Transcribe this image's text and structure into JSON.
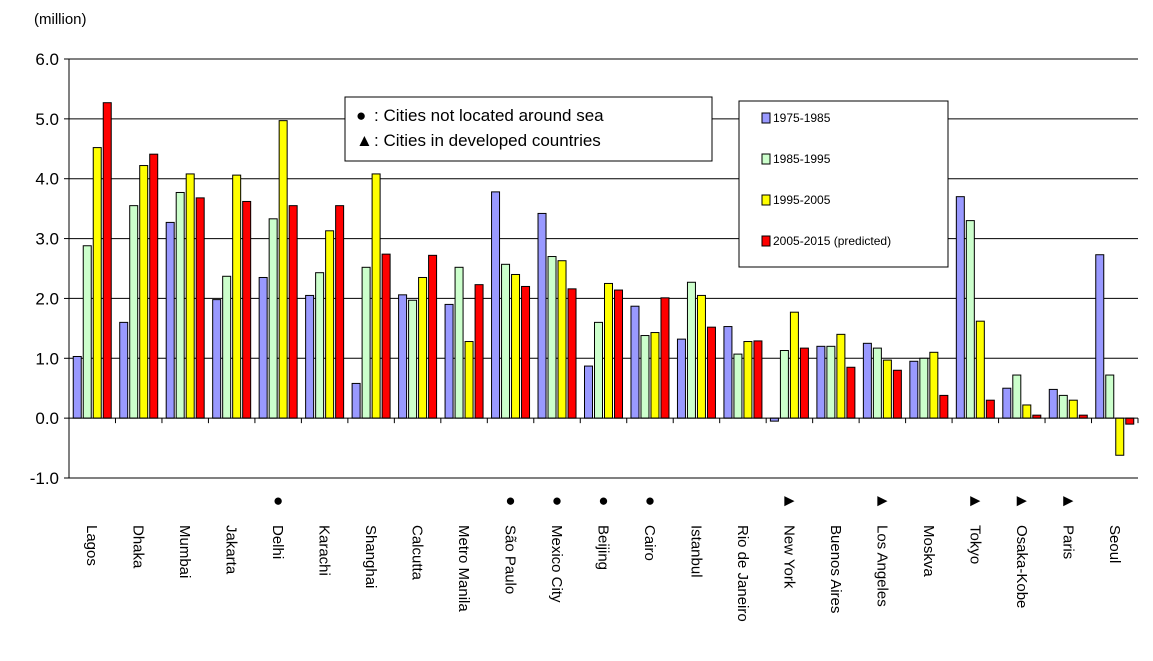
{
  "chart_data": {
    "type": "bar",
    "ylabel": "(million)",
    "ylim": [
      -1.0,
      6.0
    ],
    "yticks": [
      "6.0",
      "5.0",
      "4.0",
      "3.0",
      "2.0",
      "1.0",
      "0.0",
      "-1.0"
    ],
    "ytick_values": [
      6,
      5,
      4,
      3,
      2,
      1,
      0,
      -1
    ],
    "grid": "horizontal",
    "legend_position": "top-right",
    "categories": [
      "Lagos",
      "Dhaka",
      "Mumbai",
      "Jakarta",
      "Delhi",
      "Karachi",
      "Shanghai",
      "Calcutta",
      "Metro Manila",
      "São Paulo",
      "Mexico City",
      "Beijing",
      "Cairo",
      "Istanbul",
      "Rio de Janeiro",
      "New York",
      "Buenos Aires",
      "Los Angeles",
      "Moskva",
      "Tokyo",
      "Osaka-Kobe",
      "Paris",
      "Seoul"
    ],
    "markers": [
      "",
      "",
      "",
      "",
      "●",
      "",
      "",
      "",
      "",
      "●",
      "●",
      "●",
      "●",
      "",
      "",
      "►",
      "",
      "►",
      "",
      "►",
      "►",
      "►",
      ""
    ],
    "series": [
      {
        "name": "1975-1985",
        "color": "#9999ff",
        "values": [
          1.03,
          1.6,
          3.27,
          1.98,
          2.35,
          2.05,
          0.58,
          2.06,
          1.9,
          3.78,
          3.42,
          0.87,
          1.87,
          1.32,
          1.53,
          -0.05,
          1.2,
          1.25,
          0.95,
          3.7,
          0.5,
          0.48,
          2.73
        ]
      },
      {
        "name": "1985-1995",
        "color": "#ccffcc",
        "values": [
          2.88,
          3.55,
          3.77,
          2.37,
          3.33,
          2.43,
          2.52,
          1.97,
          2.52,
          2.57,
          2.7,
          1.6,
          1.38,
          2.27,
          1.07,
          1.13,
          1.2,
          1.17,
          1.0,
          3.3,
          0.72,
          0.38,
          0.72
        ]
      },
      {
        "name": "1995-2005",
        "color": "#ffff00",
        "values": [
          4.52,
          4.22,
          4.08,
          4.06,
          4.97,
          3.13,
          4.08,
          2.35,
          1.28,
          2.4,
          2.63,
          2.25,
          1.43,
          2.05,
          1.28,
          1.77,
          1.4,
          0.97,
          1.1,
          1.62,
          0.22,
          0.3,
          -0.62
        ]
      },
      {
        "name": "2005-2015 (predicted)",
        "color": "#ff0000",
        "values": [
          5.27,
          4.41,
          3.68,
          3.62,
          3.55,
          3.55,
          2.74,
          2.72,
          2.23,
          2.2,
          2.16,
          2.14,
          2.01,
          1.52,
          1.29,
          1.17,
          0.85,
          0.8,
          0.38,
          0.3,
          0.05,
          0.05,
          -0.1
        ]
      }
    ]
  },
  "annotation": {
    "line1_symbol": "●",
    "line1_text": ": Cities not located around sea",
    "line2_symbol": "▲",
    "line2_text": ": Cities in developed countries"
  }
}
